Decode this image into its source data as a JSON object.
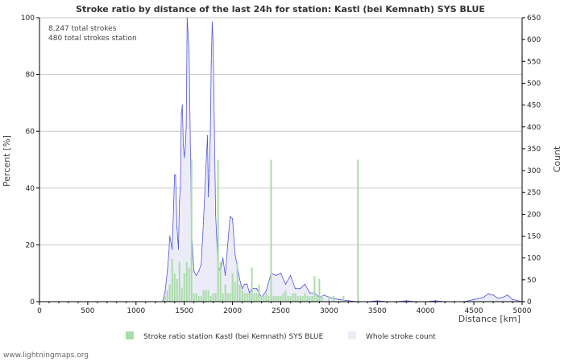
{
  "chart_data": {
    "type": "bar",
    "title": "Stroke ratio by distance of the last 24h for station: Kastl (bei Kemnath) SYS BLUE",
    "xlabel": "Distance   [km]",
    "ylabel_left": "Percent   [%]",
    "ylabel_right": "Count",
    "xlim": [
      0,
      5000
    ],
    "ylim_left": [
      0,
      100
    ],
    "ylim_right": [
      0,
      650
    ],
    "x_ticks": [
      0,
      500,
      1000,
      1500,
      2000,
      2500,
      3000,
      3500,
      4000,
      4500,
      5000
    ],
    "y_left_ticks": [
      0,
      20,
      40,
      60,
      80,
      100
    ],
    "y_right_ticks": [
      0,
      50,
      100,
      150,
      200,
      250,
      300,
      350,
      400,
      450,
      500,
      550,
      600,
      650
    ],
    "annotations": [
      "8,247 total strokes",
      "480 total strokes station"
    ],
    "legend": [
      "Stroke ratio station Kastl (bei Kemnath) SYS BLUE",
      "Whole stroke count"
    ],
    "series": [
      {
        "name": "Stroke ratio station Kastl (bei Kemnath) SYS BLUE",
        "axis": "left",
        "color": "#a8dca8",
        "x": [
          1300,
          1325,
          1350,
          1375,
          1400,
          1425,
          1450,
          1475,
          1500,
          1525,
          1550,
          1575,
          1600,
          1625,
          1650,
          1675,
          1700,
          1725,
          1750,
          1775,
          1800,
          1825,
          1850,
          1875,
          1900,
          1925,
          1950,
          1975,
          2000,
          2025,
          2050,
          2075,
          2100,
          2125,
          2150,
          2175,
          2200,
          2225,
          2250,
          2275,
          2300,
          2325,
          2350,
          2375,
          2400,
          2425,
          2450,
          2475,
          2500,
          2525,
          2550,
          2575,
          2600,
          2625,
          2650,
          2675,
          2700,
          2725,
          2750,
          2775,
          2800,
          2825,
          2850,
          2875,
          2900,
          2925,
          3000,
          3050,
          3150,
          3300
        ],
        "values": [
          2,
          4,
          6,
          15,
          10,
          8,
          14,
          5,
          10,
          14,
          12,
          50,
          3,
          3,
          2,
          2,
          4,
          4,
          4,
          2,
          3,
          3,
          50,
          14,
          3,
          6,
          3,
          3,
          10,
          7,
          14,
          6,
          4,
          3,
          3,
          3,
          12,
          3,
          3,
          6,
          2,
          2,
          3,
          2,
          50,
          2,
          2,
          2,
          2,
          3,
          4,
          2,
          2,
          3,
          3,
          2,
          2,
          2,
          3,
          2,
          2,
          2,
          9,
          2,
          8,
          2,
          2,
          2,
          2,
          50
        ]
      },
      {
        "name": "Whole stroke count",
        "axis": "right",
        "color": "#5555dd",
        "x": [
          1200,
          1275,
          1300,
          1325,
          1340,
          1350,
          1375,
          1400,
          1410,
          1425,
          1440,
          1450,
          1460,
          1470,
          1480,
          1490,
          1500,
          1510,
          1520,
          1530,
          1550,
          1575,
          1600,
          1625,
          1650,
          1675,
          1700,
          1720,
          1740,
          1750,
          1760,
          1770,
          1780,
          1790,
          1800,
          1825,
          1850,
          1875,
          1900,
          1925,
          1950,
          1975,
          2000,
          2025,
          2050,
          2075,
          2100,
          2125,
          2150,
          2175,
          2200,
          2250,
          2300,
          2350,
          2400,
          2450,
          2500,
          2550,
          2600,
          2650,
          2700,
          2750,
          2800,
          2850,
          2900,
          2950,
          3000,
          3100,
          3200,
          3300,
          3400,
          3500,
          3600,
          3700,
          3800,
          3900,
          4000,
          4100,
          4200,
          4300,
          4400,
          4500,
          4600,
          4650,
          4700,
          4750,
          4800,
          4850,
          4900,
          5000
        ],
        "values": [
          0,
          0,
          20,
          70,
          110,
          150,
          120,
          290,
          290,
          170,
          120,
          230,
          260,
          430,
          450,
          360,
          330,
          350,
          400,
          650,
          570,
          160,
          70,
          60,
          70,
          85,
          190,
          290,
          380,
          240,
          300,
          380,
          550,
          640,
          590,
          200,
          80,
          70,
          100,
          60,
          130,
          195,
          190,
          110,
          80,
          50,
          30,
          40,
          40,
          20,
          30,
          30,
          10,
          25,
          65,
          60,
          65,
          40,
          60,
          30,
          30,
          40,
          20,
          20,
          10,
          15,
          10,
          5,
          2,
          0,
          0,
          2,
          0,
          0,
          2,
          0,
          0,
          2,
          0,
          0,
          0,
          5,
          10,
          18,
          15,
          8,
          10,
          15,
          5,
          0
        ]
      }
    ]
  },
  "footer": {
    "watermark": "www.lightningmaps.org"
  }
}
